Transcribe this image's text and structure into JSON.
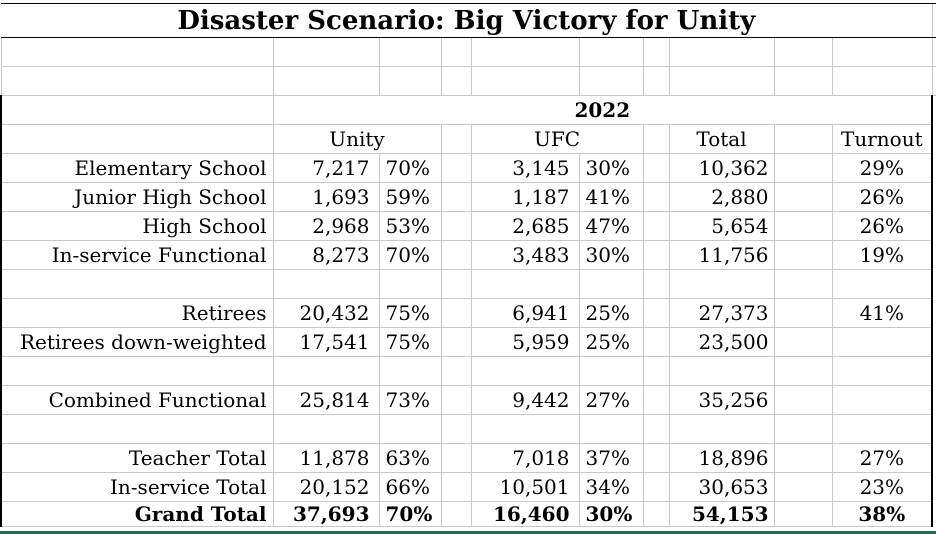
{
  "title": "Disaster Scenario: Big Victory for Unity",
  "table": {
    "year": "2022",
    "group_headers": {
      "unity": "Unity",
      "ufc": "UFC",
      "total": "Total",
      "turnout": "Turnout"
    },
    "rows": [
      {
        "label": "Elementary School",
        "unity": "7,217",
        "unity_pct": "70%",
        "ufc": "3,145",
        "ufc_pct": "30%",
        "total": "10,362",
        "turnout": "29%"
      },
      {
        "label": "Junior High School",
        "unity": "1,693",
        "unity_pct": "59%",
        "ufc": "1,187",
        "ufc_pct": "41%",
        "total": "2,880",
        "turnout": "26%"
      },
      {
        "label": "High School",
        "unity": "2,968",
        "unity_pct": "53%",
        "ufc": "2,685",
        "ufc_pct": "47%",
        "total": "5,654",
        "turnout": "26%"
      },
      {
        "label": "In-service Functional",
        "unity": "8,273",
        "unity_pct": "70%",
        "ufc": "3,483",
        "ufc_pct": "30%",
        "total": "11,756",
        "turnout": "19%"
      },
      {
        "blank": true
      },
      {
        "label": "Retirees",
        "unity": "20,432",
        "unity_pct": "75%",
        "ufc": "6,941",
        "ufc_pct": "25%",
        "total": "27,373",
        "turnout": "41%"
      },
      {
        "label": "Retirees down-weighted",
        "unity": "17,541",
        "unity_pct": "75%",
        "ufc": "5,959",
        "ufc_pct": "25%",
        "total": "23,500",
        "turnout": ""
      },
      {
        "blank": true
      },
      {
        "label": "Combined Functional",
        "unity": "25,814",
        "unity_pct": "73%",
        "ufc": "9,442",
        "ufc_pct": "27%",
        "total": "35,256",
        "turnout": ""
      },
      {
        "blank": true
      },
      {
        "label": "Teacher Total",
        "unity": "11,878",
        "unity_pct": "63%",
        "ufc": "7,018",
        "ufc_pct": "37%",
        "total": "18,896",
        "turnout": "27%"
      },
      {
        "label": "In-service Total",
        "unity": "20,152",
        "unity_pct": "66%",
        "ufc": "10,501",
        "ufc_pct": "34%",
        "total": "30,653",
        "turnout": "23%"
      },
      {
        "label": "Grand Total",
        "unity": "37,693",
        "unity_pct": "70%",
        "ufc": "16,460",
        "ufc_pct": "30%",
        "total": "54,153",
        "turnout": "38%",
        "bold": true
      }
    ]
  },
  "colors": {
    "grid": "#c8c8c8",
    "frame": "#000000",
    "accent_line": "#26684a",
    "text": "#000000",
    "background": "#ffffff"
  }
}
